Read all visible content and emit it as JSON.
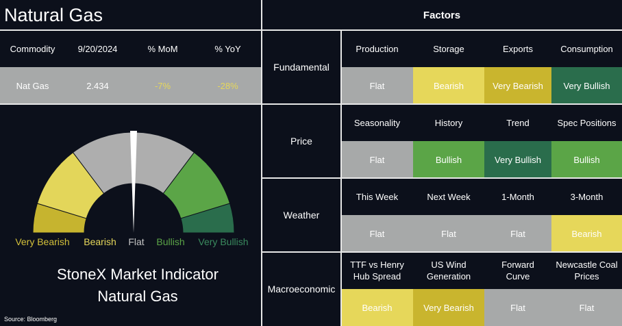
{
  "header": {
    "title": "Natural Gas",
    "factors_title": "Factors"
  },
  "commodity_table": {
    "columns": [
      "Commodity",
      "9/20/2024",
      "% MoM",
      "% YoY"
    ],
    "row": [
      "Nat Gas",
      "2.434",
      "-7%",
      "-28%"
    ],
    "row_colors": [
      "#ffffff",
      "#ffffff",
      "#e6d75a",
      "#e6d75a"
    ]
  },
  "gauge": {
    "labels": [
      {
        "text": "Very Bearish",
        "color": "#d3c03a"
      },
      {
        "text": "Bearish",
        "color": "#e6d75a"
      },
      {
        "text": "Flat",
        "color": "#c4c4c4"
      },
      {
        "text": "Bullish",
        "color": "#5ba547"
      },
      {
        "text": "Very Bullish",
        "color": "#3a8a5e"
      }
    ],
    "caption": [
      "StoneX Market Indicator",
      "Natural Gas"
    ],
    "source": "Source: Bloomberg"
  },
  "factors": [
    {
      "group": "Fundamental",
      "items": [
        {
          "name": [
            "Production"
          ],
          "status": "Flat",
          "color": "#a7a9a9"
        },
        {
          "name": [
            "Storage"
          ],
          "status": "Bearish",
          "color": "#e6d75a"
        },
        {
          "name": [
            "Exports"
          ],
          "status": "Very Bearish",
          "color": "#c9b52e"
        },
        {
          "name": [
            "Consumption"
          ],
          "status": "Very Bullish",
          "color": "#2a6d4c"
        }
      ]
    },
    {
      "group": "Price",
      "items": [
        {
          "name": [
            "Seasonality"
          ],
          "status": "Flat",
          "color": "#a7a9a9"
        },
        {
          "name": [
            "History"
          ],
          "status": "Bullish",
          "color": "#5ba547"
        },
        {
          "name": [
            "Trend"
          ],
          "status": "Very Bullish",
          "color": "#2a6d4c"
        },
        {
          "name": [
            "Spec Positions"
          ],
          "status": "Bullish",
          "color": "#5ba547"
        }
      ]
    },
    {
      "group": "Weather",
      "items": [
        {
          "name": [
            "This Week"
          ],
          "status": "Flat",
          "color": "#a7a9a9"
        },
        {
          "name": [
            "Next Week"
          ],
          "status": "Flat",
          "color": "#a7a9a9"
        },
        {
          "name": [
            "1-Month"
          ],
          "status": "Flat",
          "color": "#a7a9a9"
        },
        {
          "name": [
            "3-Month"
          ],
          "status": "Bearish",
          "color": "#e6d75a"
        }
      ]
    },
    {
      "group": "Macroeconomic",
      "items": [
        {
          "name": [
            "TTF vs Henry",
            "Hub Spread"
          ],
          "status": "Bearish",
          "color": "#e6d75a"
        },
        {
          "name": [
            "US Wind",
            "Generation"
          ],
          "status": "Very Bearish",
          "color": "#c9b52e"
        },
        {
          "name": [
            "Forward",
            "Curve"
          ],
          "status": "Flat",
          "color": "#a7a9a9"
        },
        {
          "name": [
            "Newcastle Coal",
            "Prices"
          ],
          "status": "Flat",
          "color": "#a7a9a9"
        }
      ]
    }
  ]
}
